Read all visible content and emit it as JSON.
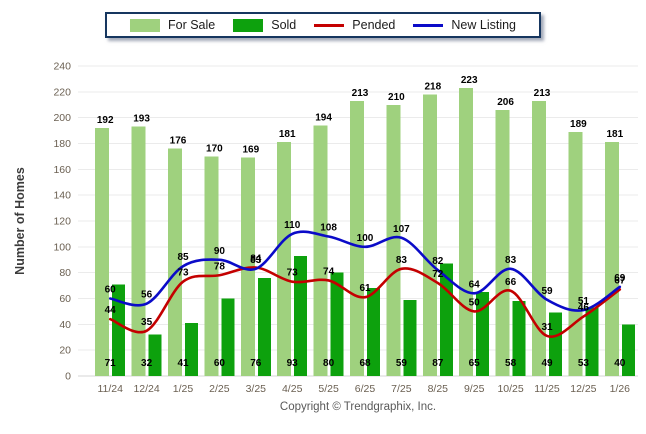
{
  "chart_data": {
    "type": "bar+line",
    "title": "",
    "categories": [
      "11/24",
      "12/24",
      "1/25",
      "2/25",
      "3/25",
      "4/25",
      "5/25",
      "6/25",
      "7/25",
      "8/25",
      "9/25",
      "10/25",
      "11/25",
      "12/25",
      "1/26"
    ],
    "series": [
      {
        "name": "For Sale",
        "type": "bar",
        "color": "#9FD17E",
        "values": [
          192,
          193,
          176,
          170,
          169,
          181,
          194,
          213,
          210,
          218,
          223,
          206,
          213,
          189,
          181
        ]
      },
      {
        "name": "Sold",
        "type": "bar",
        "color": "#0DA10D",
        "values": [
          71,
          32,
          41,
          60,
          76,
          93,
          80,
          68,
          59,
          87,
          65,
          58,
          49,
          53,
          40
        ]
      },
      {
        "name": "Pended",
        "type": "line",
        "color": "#C40000",
        "values": [
          44,
          35,
          73,
          78,
          84,
          73,
          74,
          61,
          83,
          72,
          50,
          66,
          31,
          46,
          67
        ]
      },
      {
        "name": "New Listing",
        "type": "line",
        "color": "#0B0BC8",
        "values": [
          60,
          56,
          85,
          90,
          83,
          110,
          108,
          100,
          107,
          82,
          64,
          83,
          59,
          51,
          69
        ]
      }
    ],
    "xlabel": "",
    "ylabel": "Number of Homes",
    "ylim": [
      0,
      240
    ],
    "ytick_step": 20,
    "grid": true,
    "legend_position": "top-center"
  },
  "footer": {
    "copyright": "Copyright © Trendgraphix, Inc."
  },
  "styles": {
    "grid_color": "#EBEBEB",
    "axis_color": "#D6D6D6",
    "tick_text_color": "#6B6052",
    "value_label_color": "#000000",
    "legend_border_color": "#16365F",
    "copyright_color": "#595959"
  }
}
